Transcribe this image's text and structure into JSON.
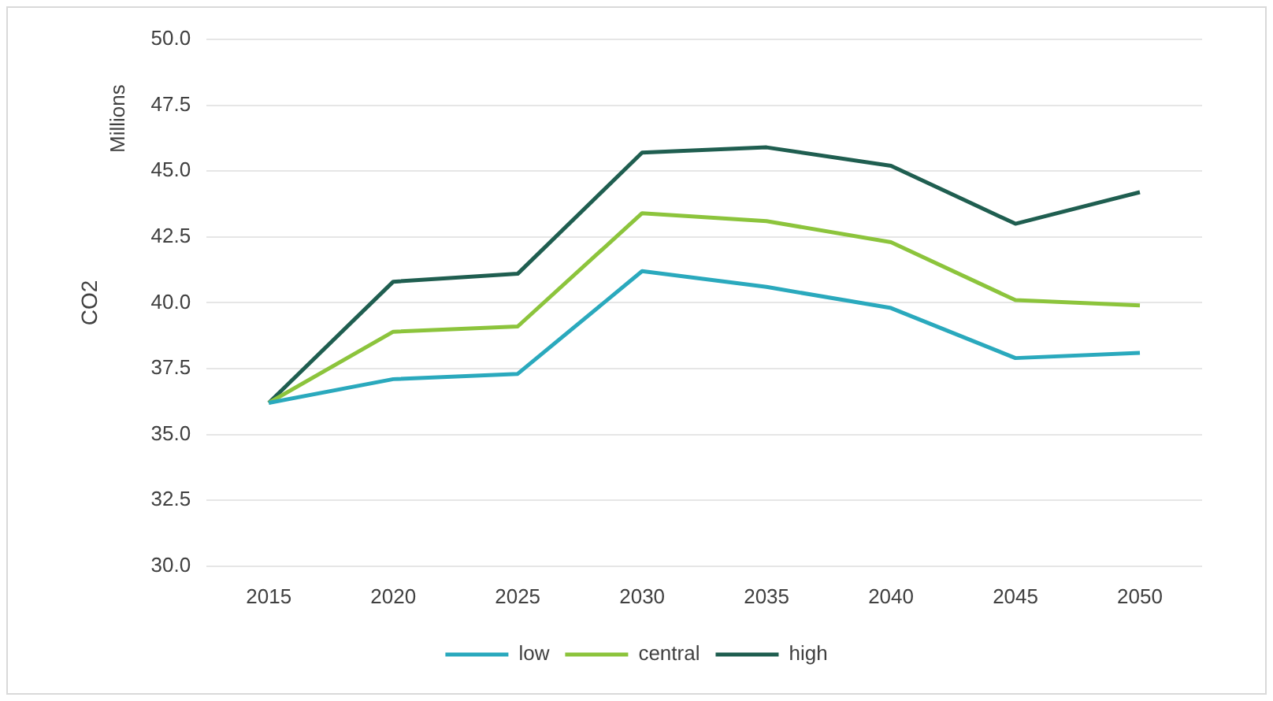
{
  "chart_data": {
    "type": "line",
    "ylabel": "CO2",
    "annotations": [
      "Millions"
    ],
    "categories": [
      "2015",
      "2020",
      "2025",
      "2030",
      "2035",
      "2040",
      "2045",
      "2050"
    ],
    "series": [
      {
        "name": "low",
        "color": "#2aa9bd",
        "values": [
          36.2,
          37.1,
          37.3,
          41.2,
          40.6,
          39.8,
          37.9,
          38.1
        ]
      },
      {
        "name": "central",
        "color": "#8cc43c",
        "values": [
          36.2,
          38.9,
          39.1,
          43.4,
          43.1,
          42.3,
          40.1,
          39.9
        ]
      },
      {
        "name": "high",
        "color": "#1f5e50",
        "values": [
          36.2,
          40.8,
          41.1,
          45.7,
          45.9,
          45.2,
          43.0,
          44.2
        ]
      }
    ],
    "ylim": [
      30,
      50
    ],
    "yticks": [
      {
        "value": 30,
        "label": "30.0"
      },
      {
        "value": 32.5,
        "label": "32.5"
      },
      {
        "value": 35,
        "label": "35.0"
      },
      {
        "value": 37.5,
        "label": "37.5"
      },
      {
        "value": 40,
        "label": "40.0"
      },
      {
        "value": 42.5,
        "label": "42.5"
      },
      {
        "value": 45,
        "label": "45.0"
      },
      {
        "value": 47.5,
        "label": "47.5"
      },
      {
        "value": 50,
        "label": "50.0"
      }
    ],
    "grid": "y",
    "legend": "bottom",
    "marker": "none",
    "line_style": "solid"
  }
}
